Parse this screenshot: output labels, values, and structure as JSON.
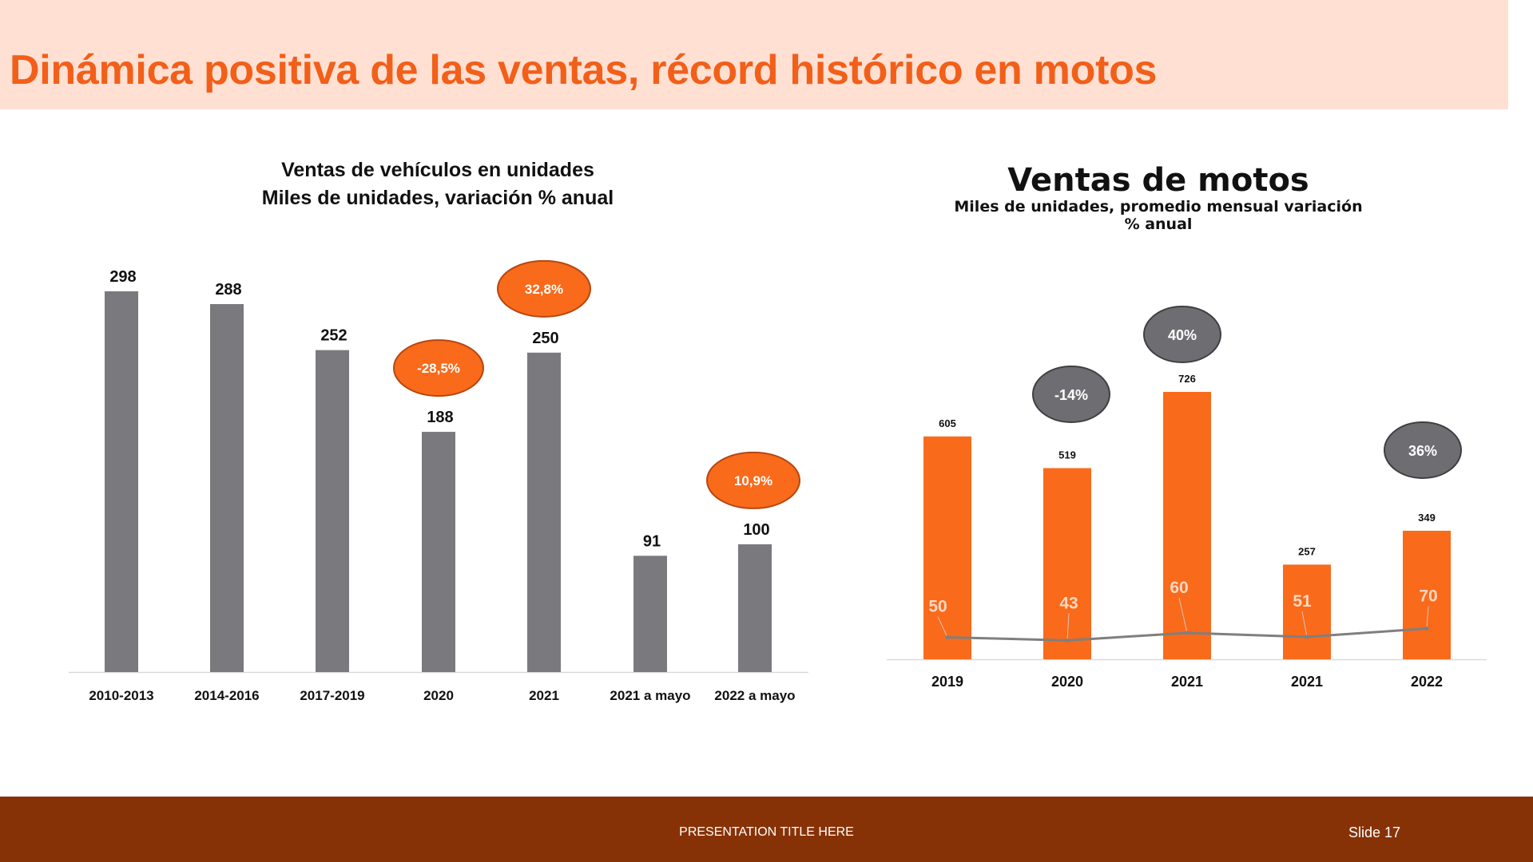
{
  "header": {
    "title": "Dinámica positiva de las ventas, récord histórico en motos"
  },
  "footer": {
    "presentation_title": "PRESENTATION TITLE HERE",
    "slide_label": "Slide 17"
  },
  "colors": {
    "orange": "#F96A1B",
    "gray_bar": "#7A797D",
    "gray_bubble": "#6E6D72",
    "header_bg": "#FFE0D3",
    "footer_bg": "#873206",
    "title_orange": "#F25F19"
  },
  "chart_data": [
    {
      "type": "bar",
      "title": "Ventas de vehículos en unidades",
      "subtitle": "Miles de unidades, variación % anual",
      "categories": [
        "2010-2013",
        "2014-2016",
        "2017-2019",
        "2020",
        "2021",
        "2021 a mayo",
        "2022 a mayo"
      ],
      "values": [
        298,
        288,
        252,
        188,
        250,
        91,
        100
      ],
      "value_labels": [
        "298",
        "288",
        "252",
        "188",
        "250",
        "91",
        "100"
      ],
      "ylim": [
        0,
        298
      ],
      "grid": false,
      "annotations": [
        {
          "category": "2020",
          "label": "-28,5%"
        },
        {
          "category": "2021",
          "label": "32,8%"
        },
        {
          "category": "2022 a mayo",
          "label": "10,9%"
        }
      ]
    },
    {
      "type": "bar",
      "title": "Ventas de motos",
      "subtitle": "Miles de unidades, promedio mensual variación % anual",
      "categories": [
        "2019",
        "2020",
        "2021",
        "2021",
        "2022"
      ],
      "series": [
        {
          "type": "bar",
          "values": [
            605,
            519,
            726,
            257,
            349
          ],
          "labels": [
            "605",
            "519",
            "726",
            "257",
            "349"
          ]
        },
        {
          "type": "line",
          "values": [
            50,
            43,
            60,
            51,
            70
          ],
          "labels": [
            "50",
            "43",
            "60",
            "51",
            "70"
          ]
        }
      ],
      "ylim": [
        0,
        726
      ],
      "grid": false,
      "annotations": [
        {
          "category_index": 1,
          "label": "-14%"
        },
        {
          "category_index": 2,
          "label": "40%"
        },
        {
          "category_index": 4,
          "label": "36%"
        }
      ]
    }
  ]
}
